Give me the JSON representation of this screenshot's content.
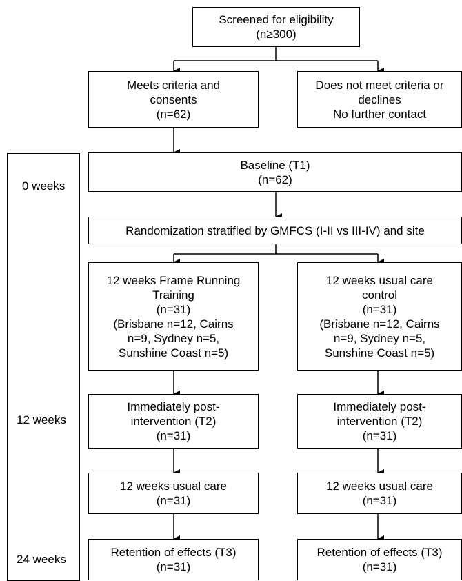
{
  "screening": {
    "line1": "Screened for eligibility",
    "line2": "(n≥300)"
  },
  "eligible": {
    "line1": "Meets criteria and",
    "line2": "consents",
    "line3": "(n=62)"
  },
  "not_eligible": {
    "line1": "Does not meet criteria or",
    "line2": "declines",
    "line3": "No further contact"
  },
  "baseline": {
    "line1": "Baseline (T1)",
    "line2": "(n=62)"
  },
  "randomization": {
    "text": "Randomization stratified by GMFCS (I-II vs III-IV) and site"
  },
  "intervention_arm": {
    "allocation": [
      "12 weeks Frame Running",
      "Training",
      "(n=31)",
      "(Brisbane n=12, Cairns",
      "n=9, Sydney n=5,",
      "Sunshine Coast n=5)"
    ],
    "post": [
      "Immediately post-",
      "intervention (T2)",
      "(n=31)"
    ],
    "usual_care": [
      "12 weeks usual care",
      "(n=31)"
    ],
    "retention": [
      "Retention of effects (T3)",
      "(n=31)"
    ]
  },
  "control_arm": {
    "allocation": [
      "12 weeks usual care",
      "control",
      "(n=31)",
      "(Brisbane n=12, Cairns",
      "n=9, Sydney n=5,",
      "Sunshine Coast n=5)"
    ],
    "post": [
      "Immediately post-",
      "intervention (T2)",
      "(n=31)"
    ],
    "usual_care": [
      "12 weeks usual care",
      "(n=31)"
    ],
    "retention": [
      "Retention of effects (T3)",
      "(n=31)"
    ]
  },
  "timeline": {
    "t0": "0 weeks",
    "t12": "12 weeks",
    "t24": "24 weeks"
  }
}
